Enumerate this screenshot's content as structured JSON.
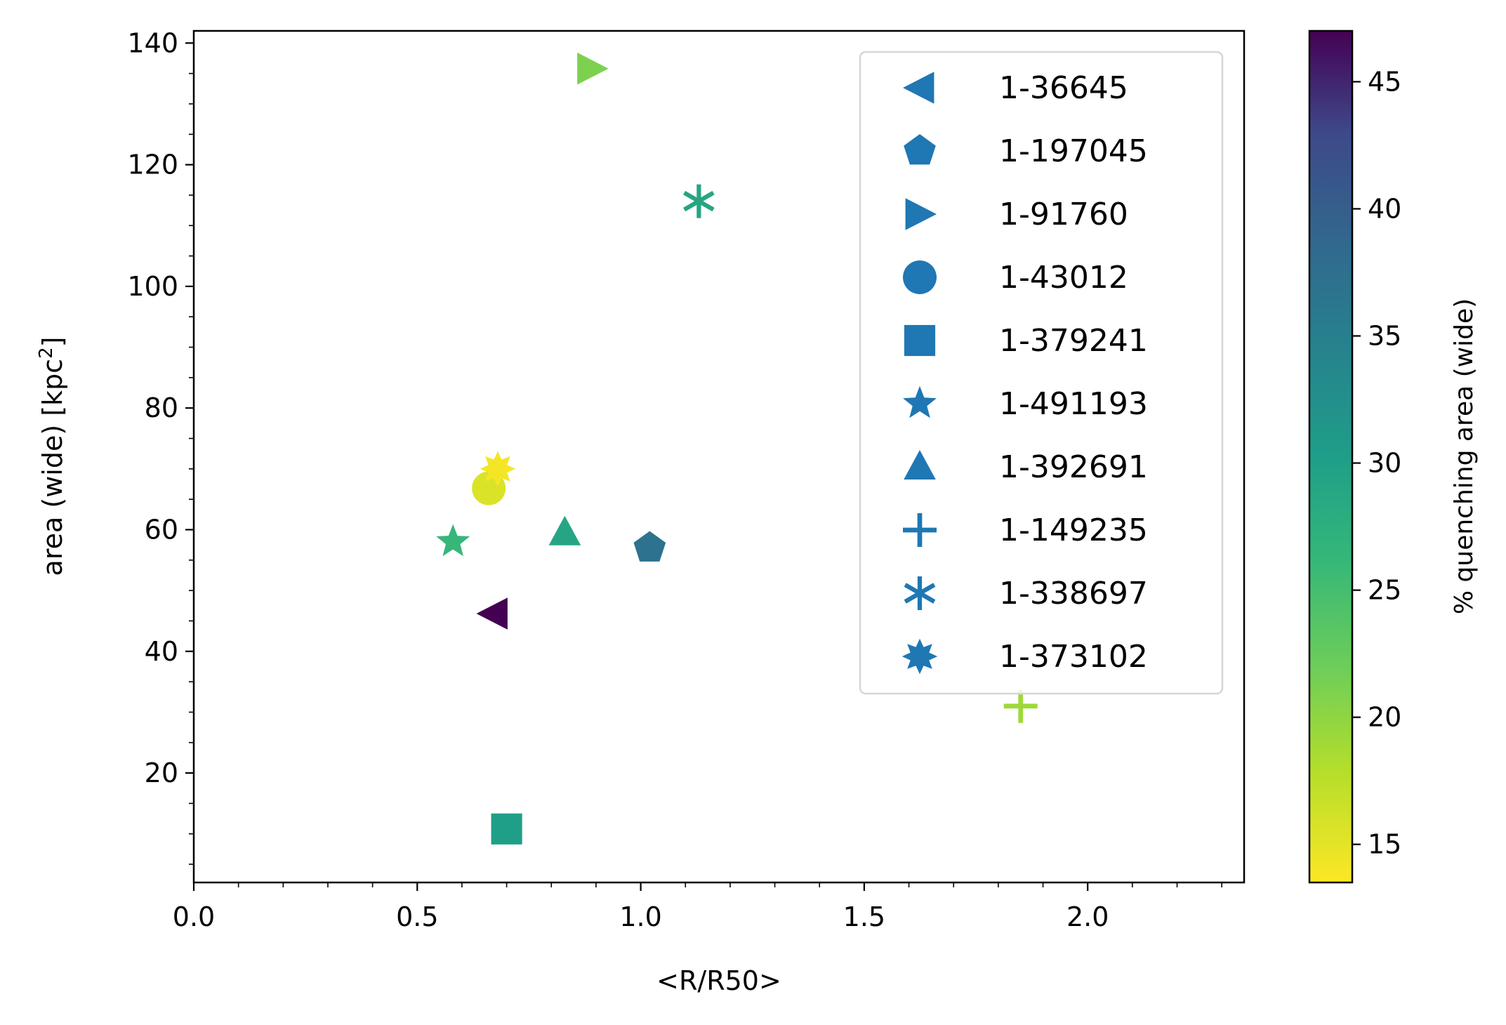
{
  "chart_data": {
    "type": "scatter",
    "xlabel": "<R/R50>",
    "ylabel_main": "area (wide) [kpc",
    "ylabel_sup": "2",
    "ylabel_end": "]",
    "xlim": [
      0,
      2.35
    ],
    "ylim": [
      2,
      142
    ],
    "xticks": [
      0.0,
      0.5,
      1.0,
      1.5,
      2.0
    ],
    "xtick_labels": [
      "0.0",
      "0.5",
      "1.0",
      "1.5",
      "2.0"
    ],
    "yticks": [
      20,
      40,
      60,
      80,
      100,
      120,
      140
    ],
    "ytick_labels": [
      "20",
      "40",
      "60",
      "80",
      "100",
      "120",
      "140"
    ],
    "grid": false,
    "legend_placement": "upper-right",
    "legend_marker_color": "#1f77b4",
    "colorbar": {
      "label": "% quenching area (wide)",
      "range": [
        13.5,
        47
      ],
      "ticks": [
        15,
        20,
        25,
        30,
        35,
        40,
        45
      ],
      "tick_labels": [
        "15",
        "20",
        "25",
        "30",
        "35",
        "40",
        "45"
      ],
      "colormap": "viridis"
    },
    "series": [
      {
        "name": "1-36645",
        "marker": "triangle-left",
        "x": 0.67,
        "y": 46.2,
        "c": 47.0
      },
      {
        "name": "1-197045",
        "marker": "pentagon",
        "x": 1.02,
        "y": 57.0,
        "c": 37.0
      },
      {
        "name": "1-91760",
        "marker": "triangle-right",
        "x": 0.89,
        "y": 135.8,
        "c": 21.0
      },
      {
        "name": "1-43012",
        "marker": "circle",
        "x": 0.66,
        "y": 66.8,
        "c": 15.5
      },
      {
        "name": "1-379241",
        "marker": "square",
        "x": 0.7,
        "y": 10.8,
        "c": 30.0
      },
      {
        "name": "1-491193",
        "marker": "star",
        "x": 0.58,
        "y": 58.0,
        "c": 26.0
      },
      {
        "name": "1-392691",
        "marker": "triangle-up",
        "x": 0.83,
        "y": 59.5,
        "c": 29.0
      },
      {
        "name": "1-149235",
        "marker": "plus",
        "x": 1.85,
        "y": 31.0,
        "c": 19.0
      },
      {
        "name": "1-338697",
        "marker": "asterisk",
        "x": 1.13,
        "y": 114.0,
        "c": 29.0
      },
      {
        "name": "1-373102",
        "marker": "sunburst",
        "x": 0.68,
        "y": 70.0,
        "c": 14.0
      }
    ]
  }
}
